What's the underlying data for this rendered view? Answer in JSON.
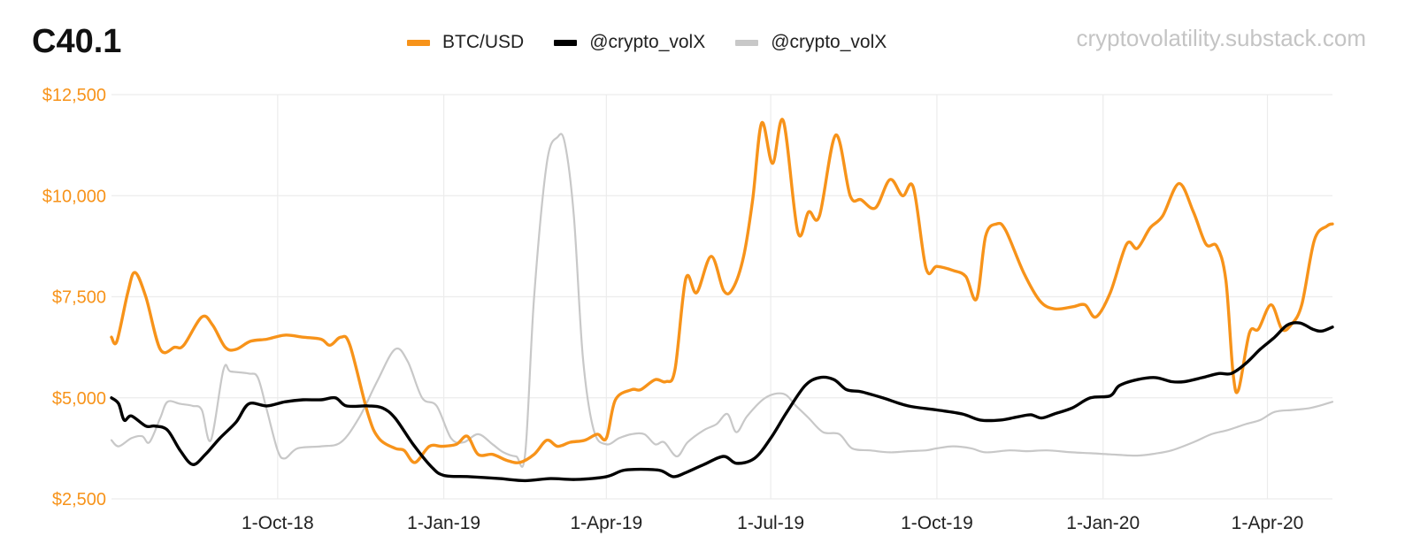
{
  "header": {
    "title": "C40.1",
    "watermark": "cryptovolatility.substack.com"
  },
  "colors": {
    "btc": "#f7931a",
    "vol_black": "#000000",
    "vol_grey": "#c8c8c8",
    "ytick": "#f7931a",
    "grid": "#ececec"
  },
  "chart_data": {
    "type": "line",
    "title": "C40.1",
    "xlabel": "",
    "ylabel": "",
    "x_range": [
      "2018-07-01",
      "2020-05-07"
    ],
    "ylim": [
      2500,
      12500
    ],
    "yticks": [
      2500,
      5000,
      7500,
      10000,
      12500
    ],
    "ytick_labels": [
      "$2,500",
      "$5,000",
      "$7,500",
      "$10,000",
      "$12,500"
    ],
    "xticks": [
      "2018-10-01",
      "2019-01-01",
      "2019-04-01",
      "2019-07-01",
      "2019-10-01",
      "2020-01-01",
      "2020-04-01"
    ],
    "xtick_labels": [
      "1-Oct-18",
      "1-Jan-19",
      "1-Apr-19",
      "1-Jul-19",
      "1-Oct-19",
      "1-Jan-20",
      "1-Apr-20"
    ],
    "grid": true,
    "legend_position": "top-center",
    "series": [
      {
        "name": "BTC/USD",
        "color": "#f7931a",
        "points": [
          [
            "2018-07-01",
            6500
          ],
          [
            "2018-07-04",
            6400
          ],
          [
            "2018-07-10",
            7600
          ],
          [
            "2018-07-14",
            8100
          ],
          [
            "2018-07-20",
            7500
          ],
          [
            "2018-07-28",
            6200
          ],
          [
            "2018-08-05",
            6250
          ],
          [
            "2018-08-10",
            6300
          ],
          [
            "2018-08-20",
            7000
          ],
          [
            "2018-08-26",
            6800
          ],
          [
            "2018-09-02",
            6250
          ],
          [
            "2018-09-08",
            6200
          ],
          [
            "2018-09-16",
            6400
          ],
          [
            "2018-09-25",
            6450
          ],
          [
            "2018-10-05",
            6550
          ],
          [
            "2018-10-15",
            6500
          ],
          [
            "2018-10-25",
            6450
          ],
          [
            "2018-10-30",
            6300
          ],
          [
            "2018-11-05",
            6500
          ],
          [
            "2018-11-10",
            6300
          ],
          [
            "2018-11-20",
            4600
          ],
          [
            "2018-11-26",
            4000
          ],
          [
            "2018-12-05",
            3750
          ],
          [
            "2018-12-10",
            3700
          ],
          [
            "2018-12-16",
            3400
          ],
          [
            "2018-12-24",
            3800
          ],
          [
            "2018-12-31",
            3800
          ],
          [
            "2019-01-08",
            3850
          ],
          [
            "2019-01-14",
            4050
          ],
          [
            "2019-01-20",
            3600
          ],
          [
            "2019-01-28",
            3600
          ],
          [
            "2019-02-05",
            3450
          ],
          [
            "2019-02-12",
            3400
          ],
          [
            "2019-02-20",
            3600
          ],
          [
            "2019-02-27",
            3950
          ],
          [
            "2019-03-05",
            3800
          ],
          [
            "2019-03-12",
            3900
          ],
          [
            "2019-03-20",
            3950
          ],
          [
            "2019-03-27",
            4100
          ],
          [
            "2019-04-01",
            4000
          ],
          [
            "2019-04-06",
            4950
          ],
          [
            "2019-04-15",
            5200
          ],
          [
            "2019-04-20",
            5200
          ],
          [
            "2019-04-28",
            5450
          ],
          [
            "2019-05-04",
            5400
          ],
          [
            "2019-05-09",
            5700
          ],
          [
            "2019-05-15",
            7950
          ],
          [
            "2019-05-21",
            7600
          ],
          [
            "2019-05-29",
            8500
          ],
          [
            "2019-06-05",
            7650
          ],
          [
            "2019-06-10",
            7700
          ],
          [
            "2019-06-16",
            8500
          ],
          [
            "2019-06-21",
            9900
          ],
          [
            "2019-06-26",
            11800
          ],
          [
            "2019-07-02",
            10800
          ],
          [
            "2019-07-08",
            11850
          ],
          [
            "2019-07-16",
            9100
          ],
          [
            "2019-07-22",
            9600
          ],
          [
            "2019-07-28",
            9500
          ],
          [
            "2019-08-06",
            11500
          ],
          [
            "2019-08-14",
            10000
          ],
          [
            "2019-08-20",
            9900
          ],
          [
            "2019-08-28",
            9700
          ],
          [
            "2019-09-05",
            10400
          ],
          [
            "2019-09-12",
            10000
          ],
          [
            "2019-09-18",
            10200
          ],
          [
            "2019-09-25",
            8200
          ],
          [
            "2019-10-01",
            8250
          ],
          [
            "2019-10-10",
            8150
          ],
          [
            "2019-10-17",
            8000
          ],
          [
            "2019-10-23",
            7450
          ],
          [
            "2019-10-28",
            9000
          ],
          [
            "2019-11-03",
            9300
          ],
          [
            "2019-11-08",
            9150
          ],
          [
            "2019-11-18",
            8100
          ],
          [
            "2019-11-27",
            7400
          ],
          [
            "2019-12-05",
            7200
          ],
          [
            "2019-12-15",
            7250
          ],
          [
            "2019-12-22",
            7300
          ],
          [
            "2019-12-28",
            7000
          ],
          [
            "2020-01-05",
            7600
          ],
          [
            "2020-01-14",
            8800
          ],
          [
            "2020-01-20",
            8700
          ],
          [
            "2020-01-27",
            9200
          ],
          [
            "2020-02-03",
            9500
          ],
          [
            "2020-02-12",
            10300
          ],
          [
            "2020-02-20",
            9600
          ],
          [
            "2020-02-27",
            8800
          ],
          [
            "2020-03-04",
            8750
          ],
          [
            "2020-03-09",
            7900
          ],
          [
            "2020-03-13",
            5600
          ],
          [
            "2020-03-16",
            5200
          ],
          [
            "2020-03-22",
            6600
          ],
          [
            "2020-03-27",
            6700
          ],
          [
            "2020-04-03",
            7300
          ],
          [
            "2020-04-09",
            6700
          ],
          [
            "2020-04-14",
            6800
          ],
          [
            "2020-04-20",
            7300
          ],
          [
            "2020-04-27",
            8900
          ],
          [
            "2020-05-04",
            9250
          ],
          [
            "2020-05-07",
            9300
          ]
        ]
      },
      {
        "name": "@crypto_volX",
        "color": "#000000",
        "points": [
          [
            "2018-07-01",
            5000
          ],
          [
            "2018-07-05",
            4850
          ],
          [
            "2018-07-08",
            4450
          ],
          [
            "2018-07-12",
            4550
          ],
          [
            "2018-07-20",
            4300
          ],
          [
            "2018-07-25",
            4300
          ],
          [
            "2018-08-01",
            4200
          ],
          [
            "2018-08-08",
            3700
          ],
          [
            "2018-08-15",
            3350
          ],
          [
            "2018-08-22",
            3600
          ],
          [
            "2018-08-30",
            4000
          ],
          [
            "2018-09-08",
            4400
          ],
          [
            "2018-09-15",
            4850
          ],
          [
            "2018-09-25",
            4800
          ],
          [
            "2018-10-05",
            4900
          ],
          [
            "2018-10-15",
            4950
          ],
          [
            "2018-10-25",
            4950
          ],
          [
            "2018-11-02",
            5000
          ],
          [
            "2018-11-08",
            4800
          ],
          [
            "2018-11-20",
            4800
          ],
          [
            "2018-11-28",
            4750
          ],
          [
            "2018-12-05",
            4500
          ],
          [
            "2018-12-15",
            3850
          ],
          [
            "2018-12-25",
            3300
          ],
          [
            "2019-01-01",
            3080
          ],
          [
            "2019-01-15",
            3050
          ],
          [
            "2019-02-01",
            3000
          ],
          [
            "2019-02-15",
            2950
          ],
          [
            "2019-03-01",
            3000
          ],
          [
            "2019-03-15",
            2980
          ],
          [
            "2019-04-01",
            3050
          ],
          [
            "2019-04-10",
            3200
          ],
          [
            "2019-04-20",
            3230
          ],
          [
            "2019-05-01",
            3200
          ],
          [
            "2019-05-08",
            3050
          ],
          [
            "2019-05-15",
            3150
          ],
          [
            "2019-05-25",
            3350
          ],
          [
            "2019-06-05",
            3550
          ],
          [
            "2019-06-12",
            3380
          ],
          [
            "2019-06-22",
            3500
          ],
          [
            "2019-07-01",
            4000
          ],
          [
            "2019-07-10",
            4650
          ],
          [
            "2019-07-20",
            5300
          ],
          [
            "2019-07-28",
            5500
          ],
          [
            "2019-08-05",
            5450
          ],
          [
            "2019-08-12",
            5200
          ],
          [
            "2019-08-20",
            5150
          ],
          [
            "2019-09-01",
            5000
          ],
          [
            "2019-09-15",
            4800
          ],
          [
            "2019-10-01",
            4700
          ],
          [
            "2019-10-15",
            4600
          ],
          [
            "2019-10-25",
            4450
          ],
          [
            "2019-11-05",
            4450
          ],
          [
            "2019-11-15",
            4530
          ],
          [
            "2019-11-22",
            4580
          ],
          [
            "2019-11-28",
            4500
          ],
          [
            "2019-12-05",
            4600
          ],
          [
            "2019-12-15",
            4750
          ],
          [
            "2019-12-25",
            5000
          ],
          [
            "2020-01-05",
            5050
          ],
          [
            "2020-01-10",
            5300
          ],
          [
            "2020-01-20",
            5450
          ],
          [
            "2020-01-30",
            5500
          ],
          [
            "2020-02-08",
            5400
          ],
          [
            "2020-02-15",
            5400
          ],
          [
            "2020-02-25",
            5500
          ],
          [
            "2020-03-05",
            5600
          ],
          [
            "2020-03-12",
            5600
          ],
          [
            "2020-03-20",
            5850
          ],
          [
            "2020-03-28",
            6200
          ],
          [
            "2020-04-05",
            6500
          ],
          [
            "2020-04-12",
            6800
          ],
          [
            "2020-04-19",
            6850
          ],
          [
            "2020-04-26",
            6700
          ],
          [
            "2020-05-01",
            6650
          ],
          [
            "2020-05-07",
            6750
          ]
        ]
      },
      {
        "name": "@crypto_volX",
        "color": "#c8c8c8",
        "points": [
          [
            "2018-07-01",
            3950
          ],
          [
            "2018-07-05",
            3800
          ],
          [
            "2018-07-12",
            4000
          ],
          [
            "2018-07-18",
            4050
          ],
          [
            "2018-07-22",
            3900
          ],
          [
            "2018-07-28",
            4500
          ],
          [
            "2018-08-01",
            4900
          ],
          [
            "2018-08-08",
            4850
          ],
          [
            "2018-08-15",
            4800
          ],
          [
            "2018-08-20",
            4700
          ],
          [
            "2018-08-25",
            3950
          ],
          [
            "2018-09-01",
            5700
          ],
          [
            "2018-09-05",
            5650
          ],
          [
            "2018-09-15",
            5600
          ],
          [
            "2018-09-20",
            5500
          ],
          [
            "2018-09-25",
            4700
          ],
          [
            "2018-10-01",
            3700
          ],
          [
            "2018-10-05",
            3500
          ],
          [
            "2018-10-12",
            3750
          ],
          [
            "2018-10-25",
            3800
          ],
          [
            "2018-11-05",
            3900
          ],
          [
            "2018-11-15",
            4500
          ],
          [
            "2018-11-25",
            5400
          ],
          [
            "2018-12-05",
            6200
          ],
          [
            "2018-12-12",
            5900
          ],
          [
            "2018-12-20",
            5000
          ],
          [
            "2018-12-28",
            4800
          ],
          [
            "2019-01-05",
            4000
          ],
          [
            "2019-01-12",
            3900
          ],
          [
            "2019-01-20",
            4100
          ],
          [
            "2019-01-28",
            3850
          ],
          [
            "2019-02-03",
            3650
          ],
          [
            "2019-02-10",
            3550
          ],
          [
            "2019-02-15",
            3600
          ],
          [
            "2019-02-20",
            7500
          ],
          [
            "2019-02-27",
            10800
          ],
          [
            "2019-03-05",
            11450
          ],
          [
            "2019-03-09",
            11300
          ],
          [
            "2019-03-14",
            9500
          ],
          [
            "2019-03-19",
            6000
          ],
          [
            "2019-03-25",
            4200
          ],
          [
            "2019-04-01",
            3850
          ],
          [
            "2019-04-08",
            4000
          ],
          [
            "2019-04-15",
            4100
          ],
          [
            "2019-04-22",
            4100
          ],
          [
            "2019-04-28",
            3850
          ],
          [
            "2019-05-03",
            3900
          ],
          [
            "2019-05-10",
            3550
          ],
          [
            "2019-05-16",
            3900
          ],
          [
            "2019-05-25",
            4200
          ],
          [
            "2019-06-01",
            4350
          ],
          [
            "2019-06-07",
            4600
          ],
          [
            "2019-06-12",
            4150
          ],
          [
            "2019-06-18",
            4550
          ],
          [
            "2019-06-28",
            5000
          ],
          [
            "2019-07-08",
            5100
          ],
          [
            "2019-07-15",
            4800
          ],
          [
            "2019-07-22",
            4500
          ],
          [
            "2019-07-30",
            4150
          ],
          [
            "2019-08-08",
            4100
          ],
          [
            "2019-08-15",
            3750
          ],
          [
            "2019-08-25",
            3700
          ],
          [
            "2019-09-05",
            3650
          ],
          [
            "2019-09-15",
            3680
          ],
          [
            "2019-09-25",
            3700
          ],
          [
            "2019-10-01",
            3750
          ],
          [
            "2019-10-10",
            3800
          ],
          [
            "2019-10-20",
            3750
          ],
          [
            "2019-10-28",
            3650
          ],
          [
            "2019-11-10",
            3700
          ],
          [
            "2019-11-20",
            3680
          ],
          [
            "2019-12-01",
            3700
          ],
          [
            "2019-12-15",
            3650
          ],
          [
            "2019-12-25",
            3630
          ],
          [
            "2020-01-05",
            3600
          ],
          [
            "2020-01-20",
            3570
          ],
          [
            "2020-01-30",
            3620
          ],
          [
            "2020-02-08",
            3700
          ],
          [
            "2020-02-20",
            3900
          ],
          [
            "2020-03-01",
            4100
          ],
          [
            "2020-03-10",
            4200
          ],
          [
            "2020-03-20",
            4350
          ],
          [
            "2020-03-28",
            4450
          ],
          [
            "2020-04-05",
            4650
          ],
          [
            "2020-04-15",
            4700
          ],
          [
            "2020-04-25",
            4750
          ],
          [
            "2020-05-07",
            4900
          ]
        ]
      }
    ]
  }
}
